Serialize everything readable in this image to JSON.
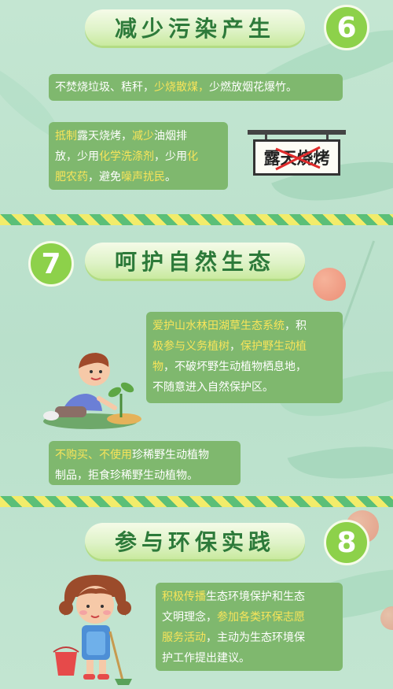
{
  "section6": {
    "title": "减少污染产生",
    "number": "6",
    "box1": {
      "p1": "不焚烧垃圾、秸秆，",
      "h1": "少烧散煤，",
      "p2": "少燃放烟花爆竹。"
    },
    "box2": {
      "line1_h": "抵制",
      "line1_p": "露天烧烤，",
      "line1_h2": "减少",
      "line1_p2": "油烟排",
      "line2_p": "放，少用",
      "line2_h": "化学洗涤剂",
      "line2_p2": "，少用",
      "line2_h2": "化",
      "line3_h": "肥农药",
      "line3_p": "，避免",
      "line3_h2": "噪声扰民",
      "line3_p2": "。"
    },
    "sign_text": "露天烧烤"
  },
  "section7": {
    "title": "呵护自然生态",
    "number": "7",
    "box1": {
      "l1_h": "爱护山水林田湖草生态系统",
      "l1_p": "，积",
      "l2_h": "极参与义务植树",
      "l2_p": "，",
      "l2_h2": "保护野生动植",
      "l3_h": "物",
      "l3_p": "，不破坏野生动植物栖息地，",
      "l4_p": "不随意进入自然保护区。"
    },
    "box2": {
      "l1_h": "不购买、不使用",
      "l1_p": "珍稀野生动植物",
      "l2_p": "制品，拒食珍稀野生动植物。"
    }
  },
  "section8": {
    "title": "参与环保实践",
    "number": "8",
    "box1": {
      "l1_h": "积极传播",
      "l1_p": "生态环境保护和生态",
      "l2_p": "文明理念，",
      "l2_h": "参加各类环保志愿",
      "l3_h": "服务活动",
      "l3_p": "，主动为生态环境保",
      "l4_p": "护工作提出建议。"
    }
  },
  "colors": {
    "background": "#bfe3cf",
    "box": "#7fb86e",
    "highlight": "#f7e45a",
    "title_text": "#2d7a3a",
    "number_circle": "#8dd14a"
  }
}
